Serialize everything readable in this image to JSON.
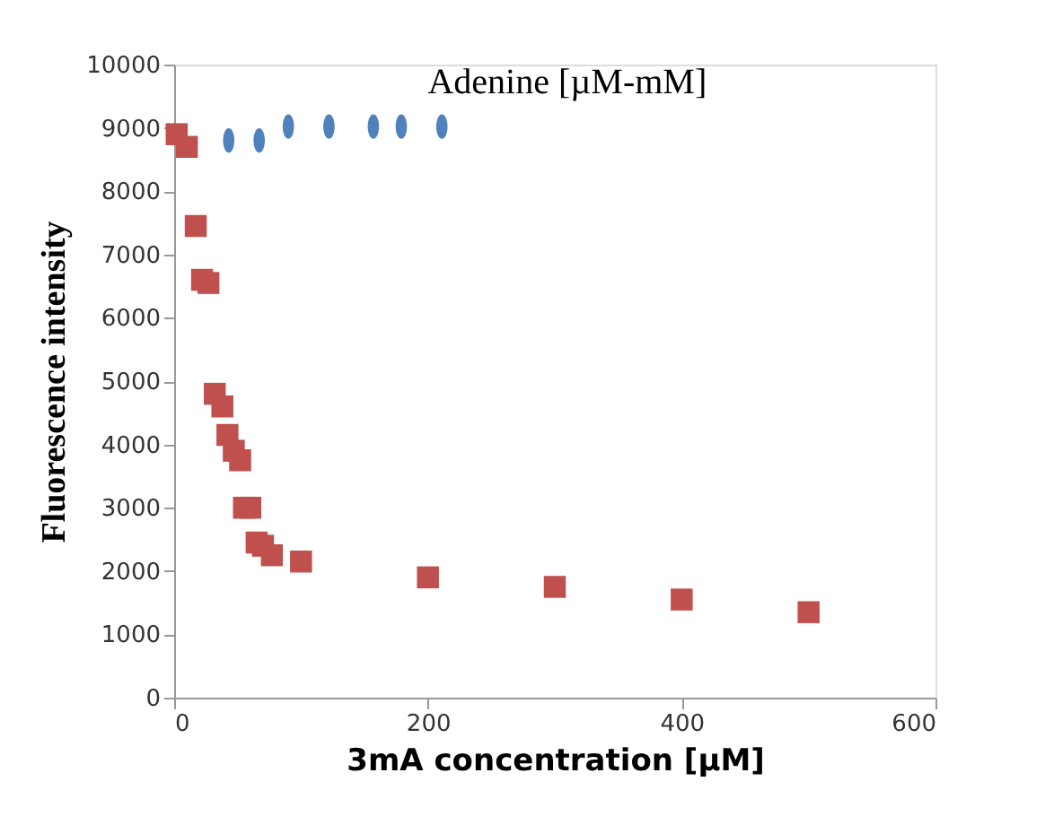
{
  "chart_data": {
    "type": "scatter",
    "xlabel": "3mA concentration [µM]",
    "ylabel": "Fluorescence intensity",
    "xlim": [
      0,
      600
    ],
    "xticks": [
      0,
      200,
      400,
      600
    ],
    "ylim": [
      0,
      10000
    ],
    "yticks": [
      0,
      1000,
      2000,
      3000,
      4000,
      5000,
      6000,
      7000,
      8000,
      9000,
      10000
    ],
    "grid": false,
    "series": [
      {
        "color": "#c0504d",
        "marker": "square",
        "x": [
          2,
          10,
          17,
          22,
          27,
          32,
          38,
          42,
          47,
          52,
          55,
          60,
          65,
          70,
          77,
          100,
          200,
          300,
          400,
          500
        ],
        "values": [
          8900,
          8700,
          7450,
          6600,
          6550,
          4800,
          4600,
          4150,
          3900,
          3750,
          3000,
          3000,
          2450,
          2400,
          2250,
          2150,
          1900,
          1750,
          1550,
          1350
        ]
      },
      {
        "name": "Adenine [µM-mM]",
        "color": "#4f81bd",
        "marker": "circle",
        "x": [
          43,
          67,
          90,
          122,
          157,
          179,
          211
        ],
        "values": [
          8800,
          8800,
          9020,
          9020,
          9020,
          9020,
          9020
        ]
      }
    ]
  }
}
